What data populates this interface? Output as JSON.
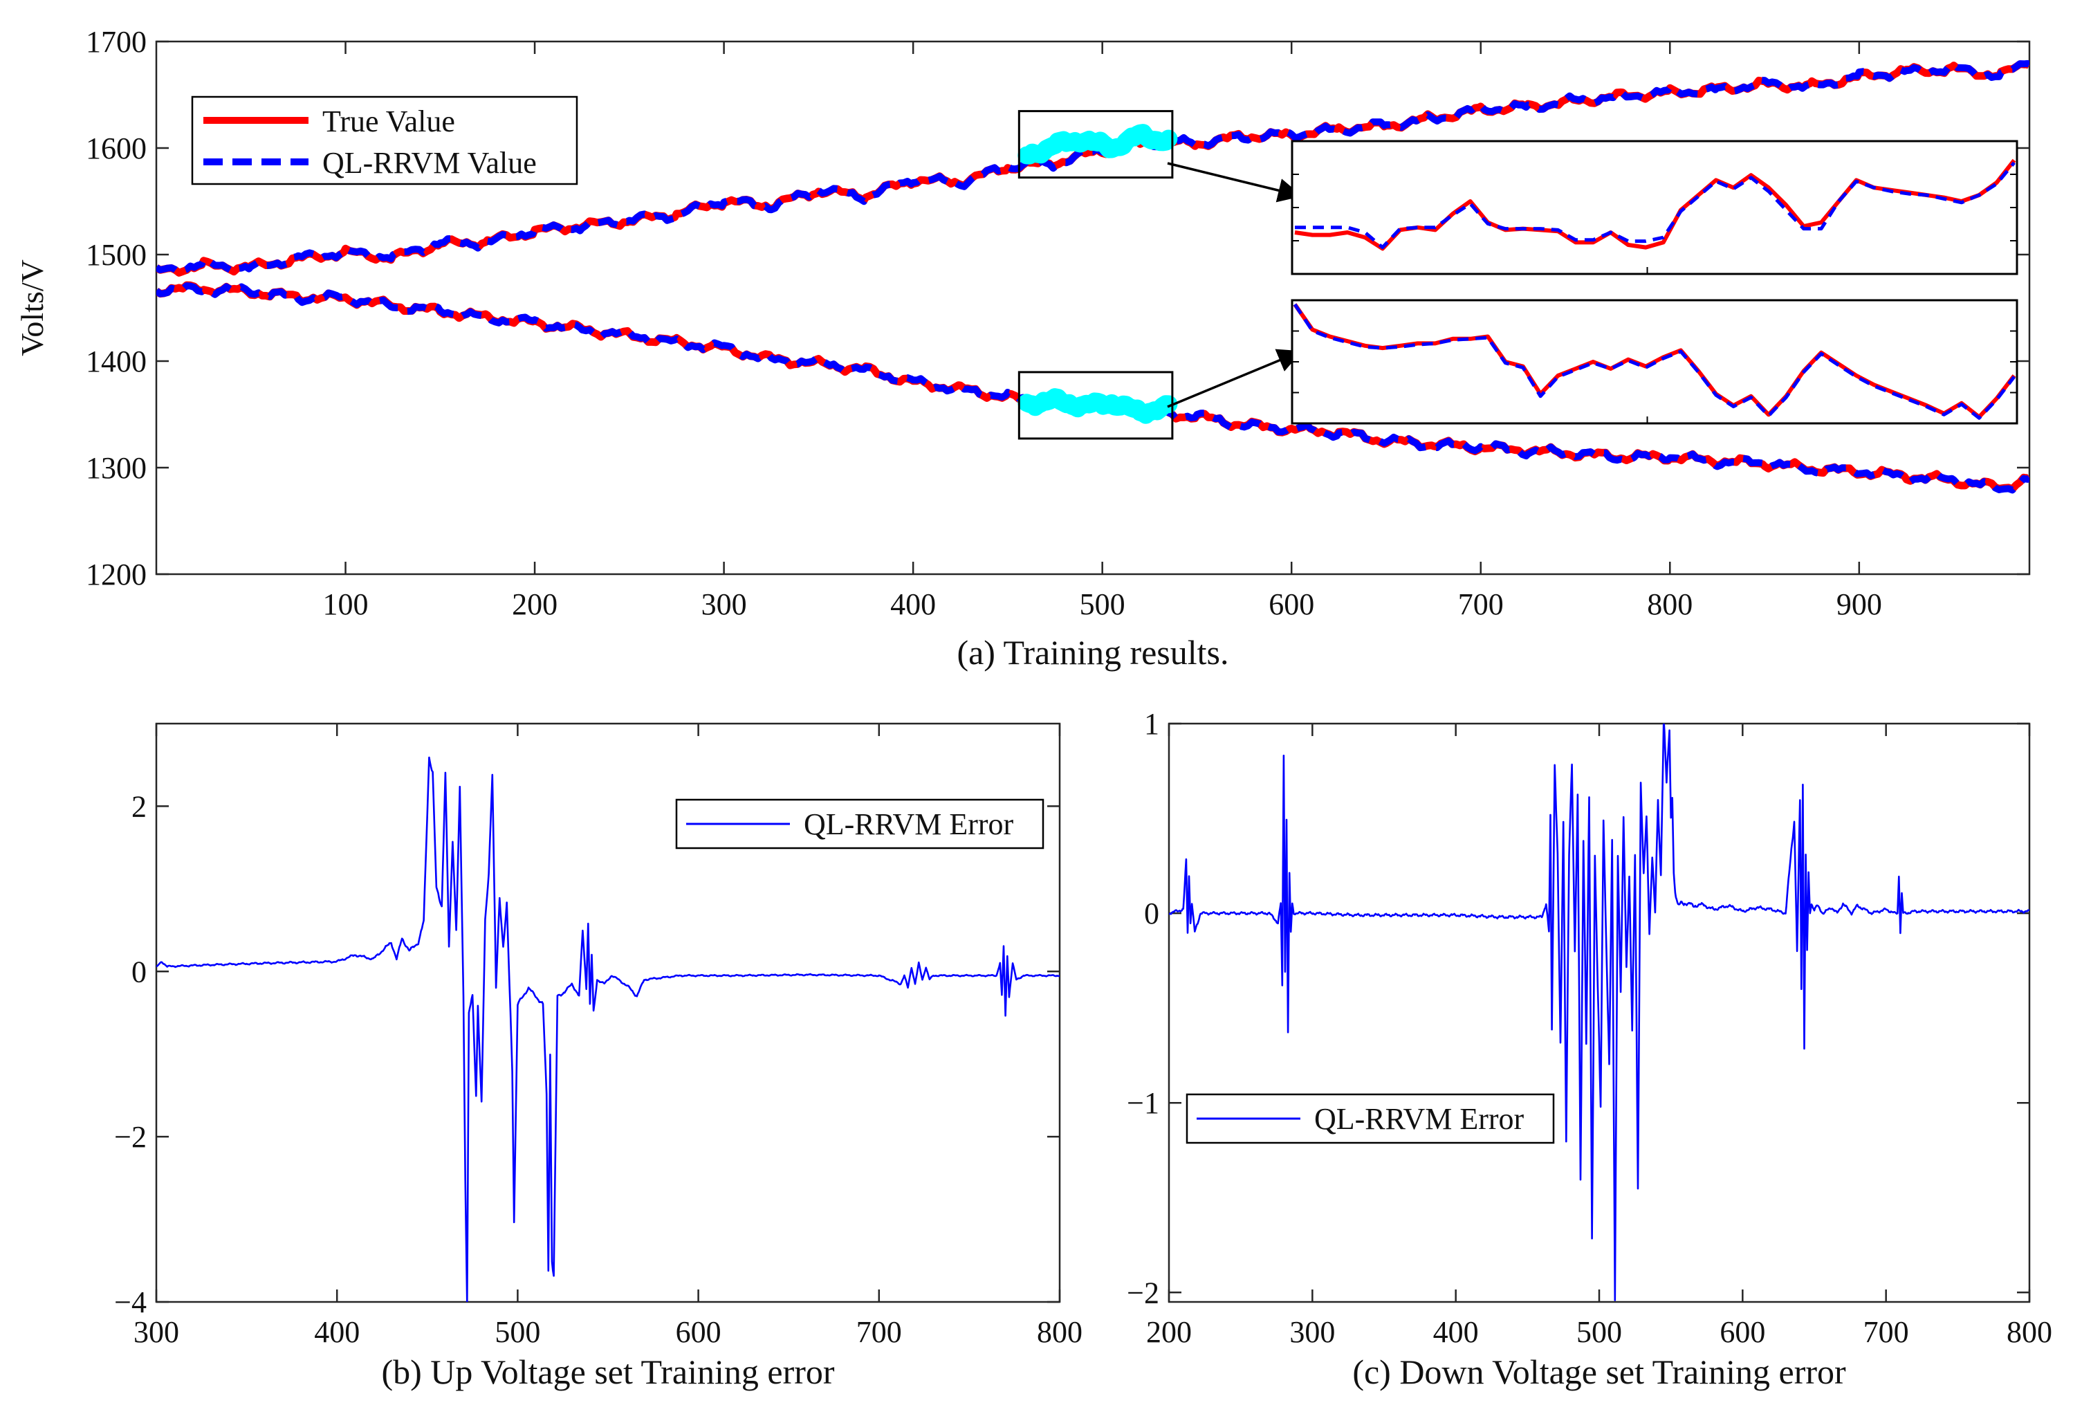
{
  "colors": {
    "true_value": "#ff0000",
    "predicted": "#0000ff",
    "highlight": "#00ffff",
    "axis": "#262626"
  },
  "chart_data": [
    {
      "id": "a",
      "type": "line",
      "caption": "(a) Training results.",
      "title": "",
      "xlabel": "",
      "ylabel": "Volts/V",
      "xlim": [
        0,
        990
      ],
      "ylim": [
        1200,
        1700
      ],
      "xticks": [
        100,
        200,
        300,
        400,
        500,
        600,
        700,
        800,
        900
      ],
      "yticks": [
        1200,
        1300,
        1400,
        1500,
        1600,
        1700
      ],
      "legend": {
        "position": "top-left",
        "entries": [
          "True Value",
          "QL-RRVM Value"
        ]
      },
      "series": [
        {
          "name": "True Value",
          "style": "solid",
          "group": "up",
          "x": [
            0,
            25,
            50,
            75,
            100,
            125,
            150,
            175,
            200,
            225,
            250,
            275,
            300,
            325,
            350,
            375,
            400,
            425,
            450,
            475,
            500,
            525,
            550,
            575,
            600,
            625,
            650,
            675,
            700,
            725,
            750,
            775,
            800,
            825,
            850,
            875,
            900,
            925,
            950,
            975,
            990
          ],
          "values": [
            1484,
            1490,
            1488,
            1496,
            1502,
            1497,
            1510,
            1512,
            1522,
            1527,
            1532,
            1538,
            1550,
            1546,
            1560,
            1555,
            1570,
            1568,
            1582,
            1586,
            1598,
            1606,
            1604,
            1611,
            1612,
            1618,
            1621,
            1628,
            1636,
            1639,
            1644,
            1649,
            1652,
            1655,
            1660,
            1658,
            1667,
            1672,
            1674,
            1668,
            1682
          ]
        },
        {
          "name": "QL-RRVM Value",
          "style": "dashed",
          "group": "up",
          "x": [
            0,
            25,
            50,
            75,
            100,
            125,
            150,
            175,
            200,
            225,
            250,
            275,
            300,
            325,
            350,
            375,
            400,
            425,
            450,
            475,
            500,
            525,
            550,
            575,
            600,
            625,
            650,
            675,
            700,
            725,
            750,
            775,
            800,
            825,
            850,
            875,
            900,
            925,
            950,
            975,
            990
          ],
          "values": [
            1484,
            1491,
            1487,
            1497,
            1502,
            1498,
            1511,
            1511,
            1523,
            1526,
            1533,
            1537,
            1551,
            1545,
            1561,
            1554,
            1571,
            1567,
            1583,
            1585,
            1599,
            1605,
            1605,
            1610,
            1613,
            1617,
            1622,
            1627,
            1637,
            1638,
            1645,
            1648,
            1653,
            1654,
            1661,
            1657,
            1668,
            1671,
            1675,
            1667,
            1683
          ]
        },
        {
          "name": "True Value",
          "style": "solid",
          "group": "down",
          "x": [
            0,
            25,
            50,
            75,
            100,
            125,
            150,
            175,
            200,
            225,
            250,
            275,
            300,
            325,
            350,
            375,
            400,
            425,
            450,
            475,
            500,
            525,
            550,
            575,
            600,
            625,
            650,
            675,
            700,
            725,
            750,
            775,
            800,
            825,
            850,
            875,
            900,
            925,
            950,
            975,
            990
          ],
          "values": [
            1467,
            1468,
            1465,
            1460,
            1459,
            1452,
            1447,
            1441,
            1436,
            1430,
            1424,
            1418,
            1412,
            1402,
            1398,
            1392,
            1380,
            1374,
            1366,
            1360,
            1360,
            1352,
            1348,
            1340,
            1336,
            1333,
            1325,
            1322,
            1319,
            1316,
            1313,
            1310,
            1310,
            1306,
            1304,
            1299,
            1296,
            1292,
            1288,
            1281,
            1290
          ]
        },
        {
          "name": "QL-RRVM Value",
          "style": "dashed",
          "group": "down",
          "x": [
            0,
            25,
            50,
            75,
            100,
            125,
            150,
            175,
            200,
            225,
            250,
            275,
            300,
            325,
            350,
            375,
            400,
            425,
            450,
            475,
            500,
            525,
            550,
            575,
            600,
            625,
            650,
            675,
            700,
            725,
            750,
            775,
            800,
            825,
            850,
            875,
            900,
            925,
            950,
            975,
            990
          ],
          "values": [
            1467,
            1467,
            1466,
            1459,
            1460,
            1451,
            1448,
            1440,
            1437,
            1429,
            1425,
            1417,
            1413,
            1401,
            1399,
            1391,
            1381,
            1373,
            1367,
            1359,
            1361,
            1351,
            1349,
            1339,
            1337,
            1332,
            1326,
            1321,
            1320,
            1315,
            1314,
            1309,
            1311,
            1305,
            1305,
            1298,
            1297,
            1291,
            1289,
            1280,
            1289
          ]
        }
      ],
      "highlights": [
        {
          "group": "up",
          "xrange": [
            460,
            535
          ],
          "values": [
            1592,
            1603,
            1608,
            1600,
            1612,
            1606
          ]
        },
        {
          "group": "down",
          "xrange": [
            460,
            535
          ],
          "values": [
            1360,
            1363,
            1358,
            1361,
            1352,
            1357
          ]
        }
      ],
      "inset_up": {
        "true": [
          0.3,
          0.28,
          0.28,
          0.3,
          0.26,
          0.17,
          0.32,
          0.34,
          0.32,
          0.45,
          0.55,
          0.38,
          0.32,
          0.33,
          0.32,
          0.31,
          0.22,
          0.22,
          0.3,
          0.2,
          0.18,
          0.22,
          0.48,
          0.6,
          0.72,
          0.66,
          0.76,
          0.66,
          0.52,
          0.35,
          0.38,
          0.55,
          0.72,
          0.66,
          0.64,
          0.62,
          0.6,
          0.58,
          0.55,
          0.6,
          0.7,
          0.88
        ],
        "pred": [
          0.34,
          0.34,
          0.34,
          0.34,
          0.3,
          0.18,
          0.33,
          0.34,
          0.34,
          0.44,
          0.53,
          0.37,
          0.33,
          0.33,
          0.33,
          0.32,
          0.24,
          0.24,
          0.3,
          0.23,
          0.23,
          0.26,
          0.47,
          0.59,
          0.71,
          0.65,
          0.74,
          0.63,
          0.48,
          0.33,
          0.33,
          0.55,
          0.71,
          0.66,
          0.63,
          0.61,
          0.6,
          0.57,
          0.54,
          0.6,
          0.69,
          0.86
        ]
      },
      "inset_down": {
        "true": [
          1.0,
          0.78,
          0.72,
          0.68,
          0.64,
          0.62,
          0.64,
          0.66,
          0.66,
          0.7,
          0.7,
          0.72,
          0.5,
          0.46,
          0.22,
          0.38,
          0.44,
          0.5,
          0.44,
          0.52,
          0.46,
          0.54,
          0.6,
          0.42,
          0.22,
          0.12,
          0.2,
          0.04,
          0.2,
          0.42,
          0.58,
          0.48,
          0.38,
          0.3,
          0.24,
          0.18,
          0.12,
          0.05,
          0.14,
          0.02,
          0.18,
          0.38
        ],
        "pred": [
          1.0,
          0.77,
          0.71,
          0.67,
          0.63,
          0.62,
          0.63,
          0.65,
          0.66,
          0.69,
          0.7,
          0.71,
          0.49,
          0.45,
          0.2,
          0.37,
          0.43,
          0.49,
          0.44,
          0.51,
          0.45,
          0.53,
          0.59,
          0.41,
          0.21,
          0.11,
          0.19,
          0.03,
          0.19,
          0.41,
          0.57,
          0.47,
          0.37,
          0.29,
          0.23,
          0.17,
          0.11,
          0.04,
          0.13,
          0.01,
          0.17,
          0.37
        ]
      }
    },
    {
      "id": "b",
      "type": "line",
      "caption": "(b) Up Voltage set Training error",
      "title": "",
      "xlabel": "",
      "ylabel": "",
      "xlim": [
        300,
        800
      ],
      "ylim": [
        -4,
        3
      ],
      "xticks": [
        300,
        400,
        500,
        600,
        700,
        800
      ],
      "yticks": [
        -4,
        -2,
        0,
        2
      ],
      "ytick_labels": [
        "−4",
        "−2",
        "0",
        "2"
      ],
      "legend": {
        "position": "top-right",
        "entries": [
          "QL-RRVM Error"
        ]
      },
      "series": [
        {
          "name": "QL-RRVM Error",
          "x": [
            300,
            303,
            306,
            330,
            360,
            400,
            410,
            420,
            425,
            430,
            433,
            436,
            440,
            445,
            448,
            451,
            453,
            455,
            458,
            460,
            462,
            464,
            466,
            468,
            470,
            471,
            472,
            473,
            475,
            477,
            478,
            480,
            482,
            484,
            486,
            488,
            490,
            492,
            494,
            496,
            497,
            498,
            500,
            503,
            506,
            510,
            514,
            516,
            517,
            518,
            519,
            520,
            522,
            526,
            530,
            534,
            536,
            538,
            539,
            540,
            541,
            542,
            544,
            548,
            552,
            556,
            562,
            566,
            570,
            590,
            620,
            660,
            700,
            712,
            714,
            716,
            718,
            720,
            722,
            724,
            726,
            728,
            730,
            750,
            765,
            767,
            768,
            769,
            770,
            771,
            772,
            774,
            776,
            780,
            800
          ],
          "values": [
            0.05,
            0.12,
            0.06,
            0.08,
            0.1,
            0.12,
            0.2,
            0.15,
            0.25,
            0.35,
            0.15,
            0.4,
            0.25,
            0.35,
            0.6,
            2.6,
            2.4,
            1.0,
            0.8,
            2.4,
            0.3,
            1.6,
            0.5,
            2.2,
            -0.3,
            -2.5,
            -4.0,
            -0.5,
            -0.3,
            -1.5,
            -0.4,
            -1.6,
            0.6,
            1.2,
            2.4,
            -0.2,
            0.9,
            0.3,
            0.8,
            -0.5,
            -1.2,
            -3.0,
            -0.4,
            -0.3,
            -0.2,
            -0.3,
            -0.4,
            -1.5,
            -3.6,
            -1.0,
            -3.5,
            -3.7,
            -0.3,
            -0.25,
            -0.15,
            -0.3,
            0.5,
            -0.2,
            0.6,
            -0.4,
            0.2,
            -0.5,
            -0.1,
            -0.15,
            -0.05,
            -0.1,
            -0.2,
            -0.3,
            -0.1,
            -0.05,
            -0.05,
            -0.04,
            -0.05,
            -0.15,
            -0.05,
            -0.2,
            0.05,
            -0.15,
            0.1,
            -0.1,
            0.05,
            -0.1,
            -0.05,
            -0.05,
            -0.05,
            0.1,
            -0.3,
            0.3,
            -0.55,
            0.2,
            -0.3,
            0.1,
            -0.1,
            -0.05,
            -0.05
          ]
        }
      ]
    },
    {
      "id": "c",
      "type": "line",
      "caption": "(c) Down Voltage set Training error",
      "title": "",
      "xlabel": "",
      "ylabel": "",
      "xlim": [
        200,
        800
      ],
      "ylim": [
        -2.05,
        1.0
      ],
      "xticks": [
        200,
        300,
        400,
        500,
        600,
        700,
        800
      ],
      "yticks": [
        -2,
        -1,
        0,
        1
      ],
      "ytick_labels": [
        "−2",
        "−1",
        "0",
        "1"
      ],
      "legend": {
        "position": "bottom-left",
        "entries": [
          "QL-RRVM Error"
        ]
      },
      "series": [
        {
          "name": "QL-RRVM Error",
          "x": [
            200,
            210,
            212,
            213,
            214,
            215,
            216,
            218,
            222,
            240,
            270,
            276,
            278,
            279,
            280,
            281,
            282,
            283,
            284,
            285,
            286,
            287,
            289,
            292,
            300,
            330,
            360,
            400,
            430,
            460,
            463,
            465,
            466,
            467,
            469,
            471,
            473,
            475,
            477,
            479,
            481,
            483,
            485,
            487,
            489,
            491,
            493,
            495,
            497,
            499,
            501,
            503,
            505,
            507,
            509,
            511,
            513,
            515,
            517,
            519,
            521,
            523,
            525,
            527,
            529,
            531,
            533,
            535,
            537,
            539,
            541,
            543,
            545,
            547,
            549,
            550,
            551,
            552,
            553,
            555,
            557,
            559,
            561,
            563,
            566,
            570,
            580,
            590,
            600,
            610,
            620,
            630,
            636,
            638,
            640,
            641,
            642,
            643,
            644,
            645,
            646,
            647,
            648,
            650,
            652,
            656,
            662,
            666,
            670,
            676,
            680,
            690,
            700,
            706,
            708,
            709,
            710,
            711,
            712,
            714,
            720,
            760,
            800
          ],
          "values": [
            0.0,
            0.02,
            0.27,
            -0.1,
            0.2,
            -0.05,
            0.05,
            -0.1,
            0.0,
            0.0,
            0.0,
            -0.05,
            0.05,
            -0.4,
            0.84,
            -0.3,
            0.5,
            -0.62,
            0.2,
            -0.1,
            0.05,
            0.0,
            0.0,
            0.0,
            0.0,
            -0.01,
            -0.01,
            -0.01,
            -0.02,
            -0.02,
            0.05,
            -0.1,
            0.5,
            -0.6,
            0.8,
            0.3,
            -0.7,
            0.5,
            -1.2,
            0.3,
            0.8,
            -0.2,
            0.6,
            -1.4,
            0.4,
            -0.7,
            0.6,
            -1.7,
            0.3,
            -0.4,
            -1.0,
            0.5,
            -0.2,
            -0.8,
            0.4,
            -2.05,
            0.3,
            -0.4,
            0.5,
            -0.3,
            0.2,
            -0.6,
            0.3,
            -1.45,
            0.7,
            0.2,
            0.5,
            -0.1,
            0.3,
            0.0,
            0.6,
            0.2,
            1.0,
            0.7,
            1.0,
            0.5,
            0.6,
            0.2,
            0.1,
            0.05,
            0.06,
            0.04,
            0.05,
            0.06,
            0.03,
            0.05,
            0.02,
            0.04,
            0.01,
            0.03,
            0.02,
            0.0,
            0.5,
            -0.2,
            0.6,
            -0.4,
            0.7,
            -0.7,
            0.3,
            -0.2,
            0.2,
            0.0,
            0.05,
            0.02,
            0.04,
            0.0,
            0.03,
            0.0,
            0.05,
            0.0,
            0.04,
            0.0,
            0.02,
            0.0,
            0.0,
            0.2,
            -0.1,
            0.1,
            0.0,
            0.0,
            0.01,
            0.01,
            0.01
          ]
        }
      ]
    }
  ]
}
